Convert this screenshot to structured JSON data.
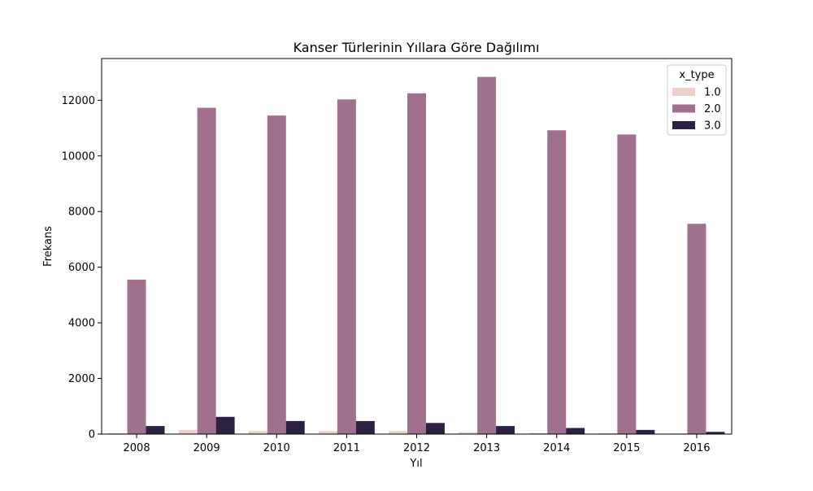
{
  "chart_data": {
    "type": "bar",
    "title": "Kanser Türlerinin Yıllara Göre Dağılımı",
    "xlabel": "Yıl",
    "ylabel": "Frekans",
    "categories": [
      "2008",
      "2009",
      "2010",
      "2011",
      "2012",
      "2013",
      "2014",
      "2015",
      "2016"
    ],
    "ylim": [
      0,
      13500
    ],
    "yticks": [
      0,
      2000,
      4000,
      6000,
      8000,
      10000,
      12000
    ],
    "ytick_labels": [
      "0",
      "2000",
      "4000",
      "6000",
      "8000",
      "10000",
      "12000"
    ],
    "grid": false,
    "legend": {
      "title": "x_type",
      "position": "top-right"
    },
    "series": [
      {
        "name": "1.0",
        "color": "#ebd1c9",
        "values": [
          40,
          150,
          110,
          110,
          110,
          70,
          45,
          40,
          25
        ]
      },
      {
        "name": "2.0",
        "color": "#a0708e",
        "values": [
          5550,
          11730,
          11450,
          12030,
          12250,
          12840,
          10920,
          10770,
          7560
        ]
      },
      {
        "name": "3.0",
        "color": "#2d2142",
        "values": [
          290,
          620,
          470,
          470,
          400,
          290,
          220,
          150,
          80
        ]
      }
    ]
  }
}
